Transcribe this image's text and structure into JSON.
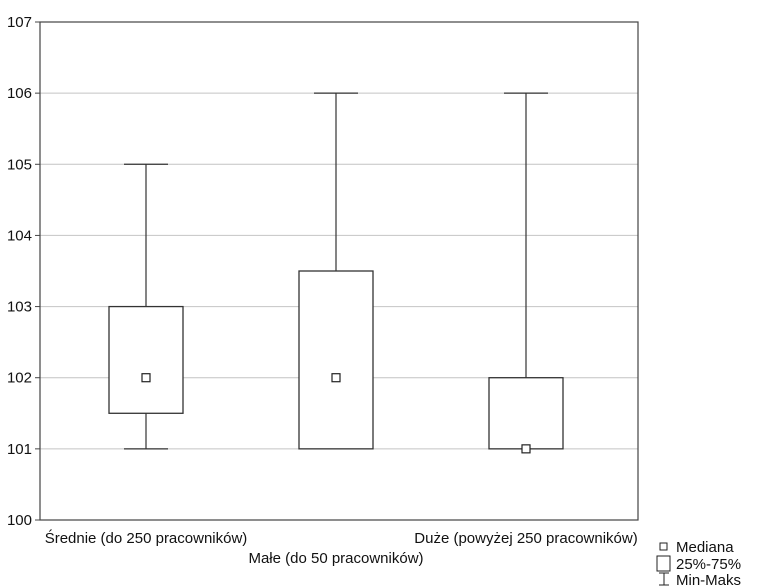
{
  "chart_data": {
    "type": "box",
    "title": "",
    "xlabel": "",
    "ylabel": "",
    "ylim": [
      100,
      107
    ],
    "yticks": [
      100,
      101,
      102,
      103,
      104,
      105,
      106,
      107
    ],
    "grid": true,
    "categories": [
      "Średnie (do 250 pracowników)",
      "Małe (do 50 pracowników)",
      "Duże (powyżej 250 pracowników)"
    ],
    "series": [
      {
        "min": 101,
        "q1": 101.5,
        "median": 102,
        "q3": 103,
        "max": 105
      },
      {
        "min": 101,
        "q1": 101,
        "median": 102,
        "q3": 103.5,
        "max": 106
      },
      {
        "min": 101,
        "q1": 101,
        "median": 101,
        "q3": 102,
        "max": 106
      }
    ],
    "legend": {
      "position": "bottom-right",
      "items": [
        {
          "label": "Mediana",
          "symbol": "square"
        },
        {
          "label": "25%-75%",
          "symbol": "box"
        },
        {
          "label": "Min-Maks",
          "symbol": "whisker"
        }
      ]
    }
  }
}
